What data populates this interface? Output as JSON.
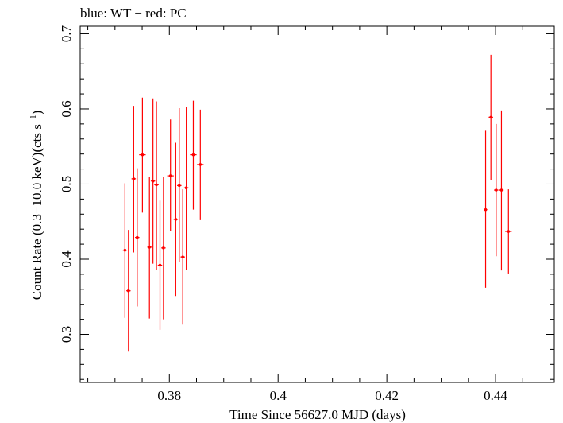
{
  "chart_data": {
    "type": "scatter",
    "title": "blue: WT − red: PC",
    "xlabel": "Time Since 56627.0 MJD (days)",
    "ylabel_main": "Count Rate (0.3−10.0 keV)(cts s",
    "ylabel_sup": "−1",
    "ylabel_end": ")",
    "xlim": [
      0.3636,
      0.4508
    ],
    "ylim": [
      0.236,
      0.71
    ],
    "x_ticks": [
      0.38,
      0.4,
      0.42,
      0.44
    ],
    "x_tick_labels": [
      "0.38",
      "0.4",
      "0.42",
      "0.44"
    ],
    "y_ticks": [
      0.3,
      0.4,
      0.5,
      0.6,
      0.7
    ],
    "y_tick_labels": [
      "0.3",
      "0.4",
      "0.5",
      "0.6",
      "0.7"
    ],
    "grid": false,
    "series": [
      {
        "color": "#ff0000",
        "points": [
          {
            "x": 0.37183,
            "xerr": 0.0004,
            "y": 0.412,
            "ylo": 0.322,
            "yhi": 0.501
          },
          {
            "x": 0.37248,
            "xerr": 0.0004,
            "y": 0.358,
            "ylo": 0.277,
            "yhi": 0.439
          },
          {
            "x": 0.37344,
            "xerr": 0.0004,
            "y": 0.507,
            "ylo": 0.409,
            "yhi": 0.604
          },
          {
            "x": 0.37409,
            "xerr": 0.0004,
            "y": 0.429,
            "ylo": 0.337,
            "yhi": 0.521
          },
          {
            "x": 0.37505,
            "xerr": 0.0006,
            "y": 0.539,
            "ylo": 0.462,
            "yhi": 0.615
          },
          {
            "x": 0.37634,
            "xerr": 0.0004,
            "y": 0.416,
            "ylo": 0.321,
            "yhi": 0.51
          },
          {
            "x": 0.37699,
            "xerr": 0.0004,
            "y": 0.504,
            "ylo": 0.394,
            "yhi": 0.614
          },
          {
            "x": 0.37763,
            "xerr": 0.0004,
            "y": 0.499,
            "ylo": 0.386,
            "yhi": 0.61
          },
          {
            "x": 0.37828,
            "xerr": 0.0004,
            "y": 0.392,
            "ylo": 0.306,
            "yhi": 0.478
          },
          {
            "x": 0.37892,
            "xerr": 0.0004,
            "y": 0.415,
            "ylo": 0.32,
            "yhi": 0.51
          },
          {
            "x": 0.38021,
            "xerr": 0.0006,
            "y": 0.511,
            "ylo": 0.437,
            "yhi": 0.586
          },
          {
            "x": 0.38118,
            "xerr": 0.0004,
            "y": 0.453,
            "ylo": 0.351,
            "yhi": 0.555
          },
          {
            "x": 0.38183,
            "xerr": 0.0004,
            "y": 0.498,
            "ylo": 0.396,
            "yhi": 0.601
          },
          {
            "x": 0.38247,
            "xerr": 0.0004,
            "y": 0.403,
            "ylo": 0.313,
            "yhi": 0.493
          },
          {
            "x": 0.38312,
            "xerr": 0.0004,
            "y": 0.495,
            "ylo": 0.386,
            "yhi": 0.603
          },
          {
            "x": 0.38441,
            "xerr": 0.0006,
            "y": 0.539,
            "ylo": 0.466,
            "yhi": 0.611
          },
          {
            "x": 0.3857,
            "xerr": 0.0006,
            "y": 0.526,
            "ylo": 0.452,
            "yhi": 0.599
          },
          {
            "x": 0.43817,
            "xerr": 0.0003,
            "y": 0.466,
            "ylo": 0.362,
            "yhi": 0.571
          },
          {
            "x": 0.43914,
            "xerr": 0.0004,
            "y": 0.589,
            "ylo": 0.505,
            "yhi": 0.672
          },
          {
            "x": 0.44011,
            "xerr": 0.0004,
            "y": 0.492,
            "ylo": 0.404,
            "yhi": 0.58
          },
          {
            "x": 0.44108,
            "xerr": 0.0004,
            "y": 0.492,
            "ylo": 0.385,
            "yhi": 0.598
          },
          {
            "x": 0.44237,
            "xerr": 0.0006,
            "y": 0.437,
            "ylo": 0.381,
            "yhi": 0.493
          }
        ]
      }
    ]
  }
}
